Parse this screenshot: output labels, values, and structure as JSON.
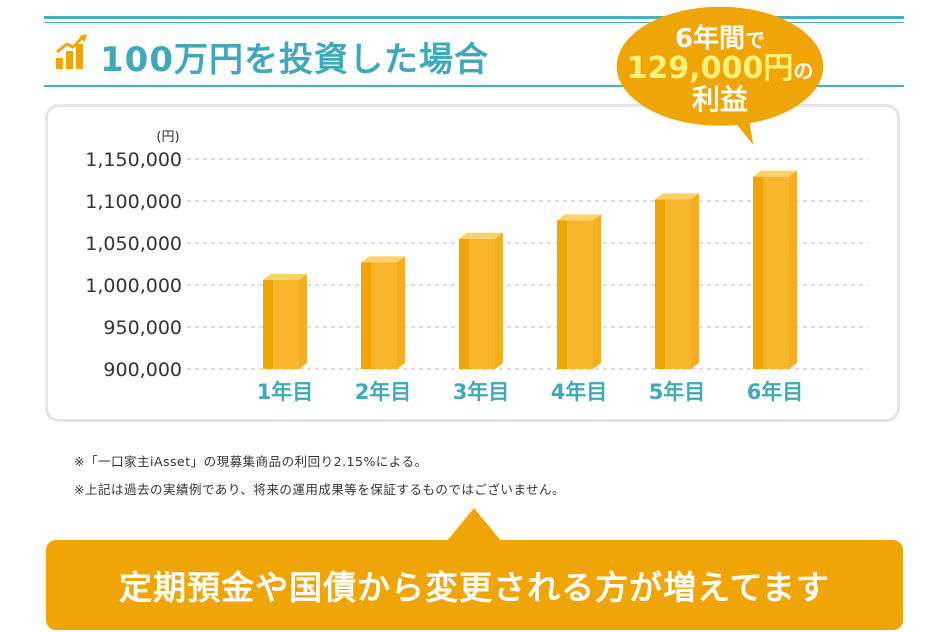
{
  "header": {
    "title": "100万円を投資した場合",
    "icon": "rising-bar-chart-icon",
    "accent_color": "#3fa9b9"
  },
  "callout": {
    "line1": "6年間",
    "line1_suffix": "で",
    "line2": "129,000円",
    "line2_suffix": "の",
    "line3": "利益",
    "color": "#f0a507",
    "highlight_color": "#fff27a"
  },
  "chart_data": {
    "type": "bar",
    "categories": [
      "1年目",
      "2年目",
      "3年目",
      "4年目",
      "5年目",
      "6年目"
    ],
    "values": [
      1006000,
      1027000,
      1055000,
      1077000,
      1102000,
      1129000
    ],
    "ylabel": "(円)",
    "ylim": [
      900000,
      1150000
    ],
    "yticks": [
      "1,150,000",
      "1,100,000",
      "1,050,000",
      "1,000,000",
      "950,000",
      "900,000"
    ],
    "ytick_values": [
      1150000,
      1100000,
      1050000,
      1000000,
      950000,
      900000
    ],
    "grid": true,
    "bar_color": "#f7b52c",
    "category_label_color": "#3fa9b9"
  },
  "notes": [
    "※「一口家主iAsset」の現募集商品の利回り2.15%による。",
    "※上記は過去の実績例であり、将来の運用成果等を保証するものではございません。"
  ],
  "banner": {
    "text": "定期預金や国債から変更される方が増えてます",
    "color": "#f0a507"
  }
}
